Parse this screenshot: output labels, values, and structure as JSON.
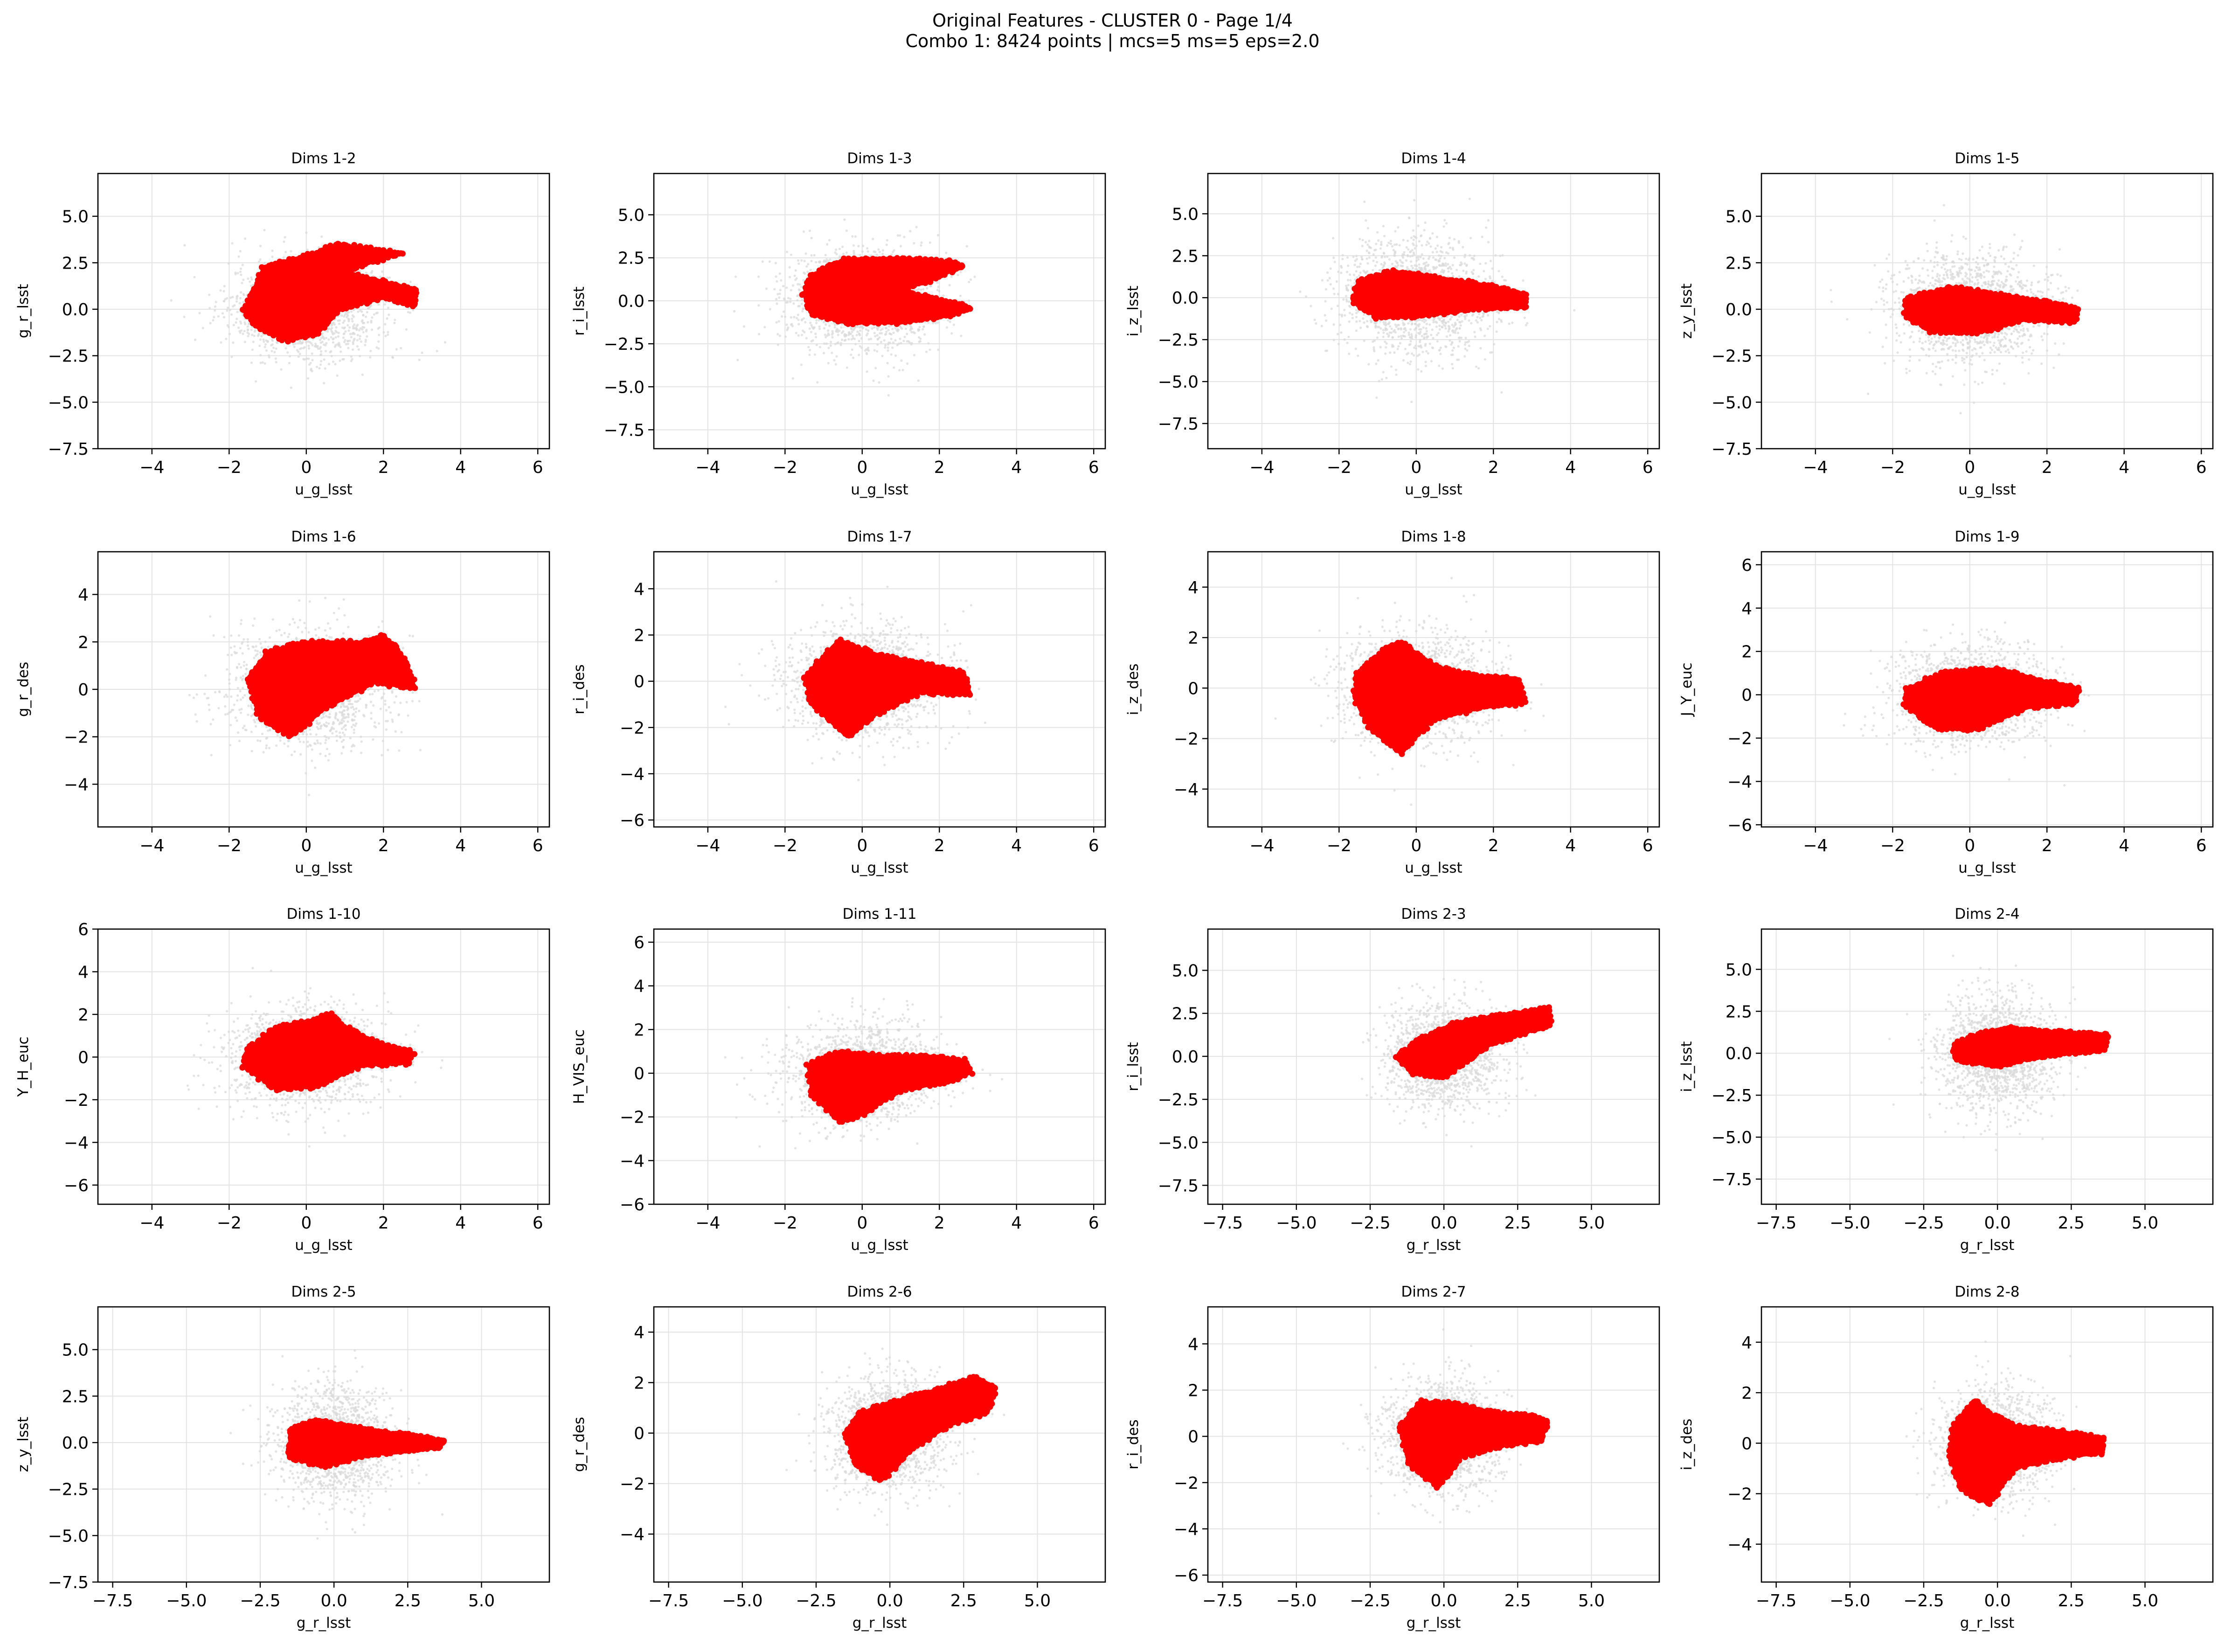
{
  "figure": {
    "title_line1": "Original Features - CLUSTER 0 - Page 1/4",
    "title_line2": "Combo 1: 8424 points | mcs=5 ms=5 eps=2.0",
    "point_colors": {
      "cluster": "#ff0000",
      "background": "#d9d9d9"
    }
  },
  "chart_data": [
    {
      "type": "scatter",
      "title": "Dims 1-2",
      "xlabel": "u_g_lsst",
      "ylabel": "g_r_lsst",
      "xlim": [
        -5.4,
        6.3
      ],
      "ylim": [
        -7.5,
        7.3
      ],
      "xticks": [
        -4,
        -2,
        0,
        2,
        4,
        6
      ],
      "yticks": [
        -7.5,
        -5.0,
        -2.5,
        0.0,
        2.5,
        5.0
      ],
      "background": {
        "center": [
          0.0,
          0.0
        ],
        "spread": [
          1.0,
          1.3
        ]
      },
      "cluster_outline": [
        [
          -1.6,
          0.0
        ],
        [
          -1.1,
          2.3
        ],
        [
          0.2,
          3.0
        ],
        [
          0.8,
          3.5
        ],
        [
          1.6,
          3.3
        ],
        [
          2.5,
          3.0
        ],
        [
          1.8,
          2.6
        ],
        [
          1.0,
          2.0
        ],
        [
          2.2,
          1.4
        ],
        [
          2.8,
          1.0
        ],
        [
          2.8,
          0.2
        ],
        [
          2.0,
          0.6
        ],
        [
          0.9,
          0.0
        ],
        [
          0.3,
          -1.3
        ],
        [
          -0.5,
          -1.7
        ],
        [
          -1.3,
          -0.9
        ]
      ]
    },
    {
      "type": "scatter",
      "title": "Dims 1-3",
      "xlabel": "u_g_lsst",
      "ylabel": "r_i_lsst",
      "xlim": [
        -5.4,
        6.3
      ],
      "ylim": [
        -8.6,
        7.4
      ],
      "xticks": [
        -4,
        -2,
        0,
        2,
        4,
        6
      ],
      "yticks": [
        -7.5,
        -5.0,
        -2.5,
        0.0,
        2.5,
        5.0
      ],
      "background": {
        "center": [
          0.0,
          0.0
        ],
        "spread": [
          1.0,
          1.5
        ]
      },
      "cluster_outline": [
        [
          -1.3,
          1.5
        ],
        [
          -0.5,
          2.4
        ],
        [
          1.0,
          2.5
        ],
        [
          2.2,
          2.3
        ],
        [
          2.6,
          2.0
        ],
        [
          1.8,
          1.2
        ],
        [
          1.0,
          0.6
        ],
        [
          2.2,
          0.0
        ],
        [
          2.8,
          -0.4
        ],
        [
          2.2,
          -0.9
        ],
        [
          1.0,
          -1.3
        ],
        [
          -0.4,
          -1.3
        ],
        [
          -1.3,
          -0.8
        ],
        [
          -1.5,
          0.3
        ]
      ]
    },
    {
      "type": "scatter",
      "title": "Dims 1-4",
      "xlabel": "u_g_lsst",
      "ylabel": "i_z_lsst",
      "xlim": [
        -5.4,
        6.3
      ],
      "ylim": [
        -9.0,
        7.4
      ],
      "xticks": [
        -4,
        -2,
        0,
        2,
        4,
        6
      ],
      "yticks": [
        -7.5,
        -5.0,
        -2.5,
        0.0,
        2.5,
        5.0
      ],
      "background": {
        "center": [
          0.0,
          0.0
        ],
        "spread": [
          1.0,
          1.8
        ]
      },
      "cluster_outline": [
        [
          -1.5,
          1.0
        ],
        [
          -0.6,
          1.6
        ],
        [
          0.6,
          1.2
        ],
        [
          2.0,
          0.7
        ],
        [
          2.8,
          0.2
        ],
        [
          2.8,
          -0.6
        ],
        [
          1.5,
          -0.7
        ],
        [
          0.2,
          -1.1
        ],
        [
          -1.0,
          -1.2
        ],
        [
          -1.6,
          -0.3
        ]
      ]
    },
    {
      "type": "scatter",
      "title": "Dims 1-5",
      "xlabel": "u_g_lsst",
      "ylabel": "z_y_lsst",
      "xlim": [
        -5.4,
        6.3
      ],
      "ylim": [
        -7.5,
        7.3
      ],
      "xticks": [
        -4,
        -2,
        0,
        2,
        4,
        6
      ],
      "yticks": [
        -7.5,
        -5.0,
        -2.5,
        0.0,
        2.5,
        5.0
      ],
      "background": {
        "center": [
          0.0,
          0.0
        ],
        "spread": [
          1.0,
          1.5
        ]
      },
      "cluster_outline": [
        [
          -1.6,
          0.6
        ],
        [
          -0.5,
          1.2
        ],
        [
          0.8,
          0.8
        ],
        [
          2.0,
          0.4
        ],
        [
          2.8,
          0.0
        ],
        [
          2.7,
          -0.7
        ],
        [
          1.4,
          -0.6
        ],
        [
          0.2,
          -1.3
        ],
        [
          -1.0,
          -1.2
        ],
        [
          -1.7,
          -0.3
        ]
      ]
    },
    {
      "type": "scatter",
      "title": "Dims 1-6",
      "xlabel": "u_g_lsst",
      "ylabel": "g_r_des",
      "xlim": [
        -5.4,
        6.3
      ],
      "ylim": [
        -5.8,
        5.8
      ],
      "xticks": [
        -4,
        -2,
        0,
        2,
        4,
        6
      ],
      "yticks": [
        -4,
        -2,
        0,
        2,
        4
      ],
      "background": {
        "center": [
          0.0,
          0.0
        ],
        "spread": [
          1.0,
          1.2
        ]
      },
      "cluster_outline": [
        [
          -1.5,
          0.4
        ],
        [
          -1.0,
          1.6
        ],
        [
          0.0,
          2.0
        ],
        [
          1.5,
          2.0
        ],
        [
          2.0,
          2.3
        ],
        [
          2.6,
          1.2
        ],
        [
          2.8,
          0.0
        ],
        [
          1.8,
          0.3
        ],
        [
          0.5,
          -0.8
        ],
        [
          -0.4,
          -2.0
        ],
        [
          -1.2,
          -1.2
        ]
      ]
    },
    {
      "type": "scatter",
      "title": "Dims 1-7",
      "xlabel": "u_g_lsst",
      "ylabel": "r_i_des",
      "xlim": [
        -5.4,
        6.3
      ],
      "ylim": [
        -6.3,
        5.6
      ],
      "xticks": [
        -4,
        -2,
        0,
        2,
        4,
        6
      ],
      "yticks": [
        -6,
        -4,
        -2,
        0,
        2,
        4
      ],
      "background": {
        "center": [
          0.0,
          0.0
        ],
        "spread": [
          1.0,
          1.2
        ]
      },
      "cluster_outline": [
        [
          -1.5,
          0.2
        ],
        [
          -0.6,
          1.8
        ],
        [
          0.3,
          1.2
        ],
        [
          1.5,
          0.8
        ],
        [
          2.6,
          0.4
        ],
        [
          2.8,
          -0.6
        ],
        [
          1.5,
          -0.5
        ],
        [
          0.3,
          -1.5
        ],
        [
          -0.4,
          -2.4
        ],
        [
          -1.3,
          -1.0
        ]
      ]
    },
    {
      "type": "scatter",
      "title": "Dims 1-8",
      "xlabel": "u_g_lsst",
      "ylabel": "i_z_des",
      "xlim": [
        -5.4,
        6.3
      ],
      "ylim": [
        -5.5,
        5.4
      ],
      "xticks": [
        -4,
        -2,
        0,
        2,
        4,
        6
      ],
      "yticks": [
        -4,
        -2,
        0,
        2,
        4
      ],
      "background": {
        "center": [
          0.0,
          0.0
        ],
        "spread": [
          1.0,
          1.1
        ]
      },
      "cluster_outline": [
        [
          -1.5,
          0.6
        ],
        [
          -0.8,
          1.6
        ],
        [
          -0.4,
          1.8
        ],
        [
          0.6,
          0.8
        ],
        [
          1.6,
          0.5
        ],
        [
          2.6,
          0.4
        ],
        [
          2.8,
          -0.6
        ],
        [
          1.6,
          -0.8
        ],
        [
          0.4,
          -1.3
        ],
        [
          -0.4,
          -2.6
        ],
        [
          -1.2,
          -1.6
        ],
        [
          -1.6,
          -0.4
        ]
      ]
    },
    {
      "type": "scatter",
      "title": "Dims 1-9",
      "xlabel": "u_g_lsst",
      "ylabel": "J_Y_euc",
      "xlim": [
        -5.4,
        6.3
      ],
      "ylim": [
        -6.1,
        6.6
      ],
      "xticks": [
        -4,
        -2,
        0,
        2,
        4,
        6
      ],
      "yticks": [
        -6,
        -4,
        -2,
        0,
        2,
        4,
        6
      ],
      "background": {
        "center": [
          0.0,
          0.0
        ],
        "spread": [
          1.0,
          1.2
        ]
      },
      "cluster_outline": [
        [
          -1.6,
          0.3
        ],
        [
          -0.6,
          1.1
        ],
        [
          0.8,
          1.2
        ],
        [
          2.0,
          0.6
        ],
        [
          2.8,
          0.3
        ],
        [
          2.7,
          -0.4
        ],
        [
          1.5,
          -0.6
        ],
        [
          0.2,
          -1.6
        ],
        [
          -0.8,
          -1.6
        ],
        [
          -1.7,
          -0.5
        ]
      ]
    },
    {
      "type": "scatter",
      "title": "Dims 1-10",
      "xlabel": "u_g_lsst",
      "ylabel": "Y_H_euc",
      "xlim": [
        -5.4,
        6.3
      ],
      "ylim": [
        -6.9,
        6.0
      ],
      "xticks": [
        -4,
        -2,
        0,
        2,
        4,
        6
      ],
      "yticks": [
        -6,
        -4,
        -2,
        0,
        2,
        4,
        6
      ],
      "background": {
        "center": [
          0.0,
          0.0
        ],
        "spread": [
          1.0,
          1.2
        ]
      },
      "cluster_outline": [
        [
          -1.5,
          0.4
        ],
        [
          -0.8,
          1.4
        ],
        [
          0.3,
          1.8
        ],
        [
          0.6,
          2.0
        ],
        [
          1.2,
          1.2
        ],
        [
          2.0,
          0.6
        ],
        [
          2.8,
          0.2
        ],
        [
          2.6,
          -0.3
        ],
        [
          1.4,
          -0.4
        ],
        [
          0.3,
          -1.4
        ],
        [
          -0.8,
          -1.5
        ],
        [
          -1.6,
          -0.5
        ]
      ]
    },
    {
      "type": "scatter",
      "title": "Dims 1-11",
      "xlabel": "u_g_lsst",
      "ylabel": "H_VIS_euc",
      "xlim": [
        -5.4,
        6.3
      ],
      "ylim": [
        -6.0,
        6.6
      ],
      "xticks": [
        -4,
        -2,
        0,
        2,
        4,
        6
      ],
      "yticks": [
        -6,
        -4,
        -2,
        0,
        2,
        4,
        6
      ],
      "background": {
        "center": [
          0.0,
          0.0
        ],
        "spread": [
          1.0,
          1.1
        ]
      },
      "cluster_outline": [
        [
          -1.4,
          0.4
        ],
        [
          -0.6,
          1.0
        ],
        [
          0.6,
          0.8
        ],
        [
          1.6,
          0.8
        ],
        [
          2.6,
          0.6
        ],
        [
          2.8,
          0.0
        ],
        [
          2.2,
          -0.4
        ],
        [
          1.0,
          -0.8
        ],
        [
          0.0,
          -1.9
        ],
        [
          -0.6,
          -2.2
        ],
        [
          -1.3,
          -1.0
        ]
      ]
    },
    {
      "type": "scatter",
      "title": "Dims 2-3",
      "xlabel": "g_r_lsst",
      "ylabel": "r_i_lsst",
      "xlim": [
        -8.0,
        7.3
      ],
      "ylim": [
        -8.6,
        7.4
      ],
      "xticks": [
        -7.5,
        -5.0,
        -2.5,
        0.0,
        2.5,
        5.0
      ],
      "yticks": [
        -7.5,
        -5.0,
        -2.5,
        0.0,
        2.5,
        5.0
      ],
      "background": {
        "center": [
          0.0,
          0.0
        ],
        "spread": [
          1.0,
          1.5
        ]
      },
      "cluster_outline": [
        [
          -1.6,
          0.0
        ],
        [
          -0.8,
          1.0
        ],
        [
          0.3,
          1.9
        ],
        [
          1.5,
          2.3
        ],
        [
          2.8,
          2.6
        ],
        [
          3.5,
          2.8
        ],
        [
          3.6,
          1.8
        ],
        [
          3.0,
          1.5
        ],
        [
          1.5,
          0.6
        ],
        [
          0.6,
          -0.5
        ],
        [
          0.0,
          -1.2
        ],
        [
          -1.0,
          -1.0
        ]
      ]
    },
    {
      "type": "scatter",
      "title": "Dims 2-4",
      "xlabel": "g_r_lsst",
      "ylabel": "i_z_lsst",
      "xlim": [
        -8.0,
        7.3
      ],
      "ylim": [
        -9.0,
        7.4
      ],
      "xticks": [
        -7.5,
        -5.0,
        -2.5,
        0.0,
        2.5,
        5.0
      ],
      "yticks": [
        -7.5,
        -5.0,
        -2.5,
        0.0,
        2.5,
        5.0
      ],
      "background": {
        "center": [
          0.0,
          0.0
        ],
        "spread": [
          1.0,
          1.8
        ]
      },
      "cluster_outline": [
        [
          -1.5,
          0.5
        ],
        [
          -0.6,
          1.2
        ],
        [
          0.5,
          1.5
        ],
        [
          1.8,
          1.3
        ],
        [
          3.0,
          1.2
        ],
        [
          3.7,
          1.1
        ],
        [
          3.6,
          0.2
        ],
        [
          2.6,
          0.0
        ],
        [
          1.2,
          -0.3
        ],
        [
          0.0,
          -0.8
        ],
        [
          -1.4,
          -0.4
        ]
      ]
    },
    {
      "type": "scatter",
      "title": "Dims 2-5",
      "xlabel": "g_r_lsst",
      "ylabel": "z_y_lsst",
      "xlim": [
        -8.0,
        7.3
      ],
      "ylim": [
        -7.5,
        7.3
      ],
      "xticks": [
        -7.5,
        -5.0,
        -2.5,
        0.0,
        2.5,
        5.0
      ],
      "yticks": [
        -7.5,
        -5.0,
        -2.5,
        0.0,
        2.5,
        5.0
      ],
      "background": {
        "center": [
          0.0,
          0.0
        ],
        "spread": [
          1.0,
          1.5
        ]
      },
      "cluster_outline": [
        [
          -1.5,
          0.7
        ],
        [
          -0.6,
          1.2
        ],
        [
          0.5,
          0.9
        ],
        [
          1.6,
          0.6
        ],
        [
          2.6,
          0.4
        ],
        [
          3.7,
          0.1
        ],
        [
          3.5,
          -0.3
        ],
        [
          2.0,
          -0.5
        ],
        [
          0.8,
          -0.8
        ],
        [
          -0.3,
          -1.3
        ],
        [
          -1.5,
          -0.8
        ]
      ]
    },
    {
      "type": "scatter",
      "title": "Dims 2-6",
      "xlabel": "g_r_lsst",
      "ylabel": "g_r_des",
      "xlim": [
        -8.0,
        7.3
      ],
      "ylim": [
        -5.9,
        5.0
      ],
      "xticks": [
        -7.5,
        -5.0,
        -2.5,
        0.0,
        2.5,
        5.0
      ],
      "yticks": [
        -4,
        -2,
        0,
        2,
        4
      ],
      "background": {
        "center": [
          0.0,
          0.0
        ],
        "spread": [
          1.0,
          1.1
        ]
      },
      "cluster_outline": [
        [
          -1.5,
          0.0
        ],
        [
          -1.0,
          0.8
        ],
        [
          0.0,
          1.2
        ],
        [
          1.5,
          1.7
        ],
        [
          2.8,
          2.2
        ],
        [
          3.6,
          1.8
        ],
        [
          3.3,
          0.8
        ],
        [
          2.0,
          0.3
        ],
        [
          0.8,
          -0.6
        ],
        [
          -0.3,
          -1.9
        ],
        [
          -1.2,
          -1.2
        ]
      ]
    },
    {
      "type": "scatter",
      "title": "Dims 2-7",
      "xlabel": "g_r_lsst",
      "ylabel": "r_i_des",
      "xlim": [
        -8.0,
        7.3
      ],
      "ylim": [
        -6.3,
        5.6
      ],
      "xticks": [
        -7.5,
        -5.0,
        -2.5,
        0.0,
        2.5,
        5.0
      ],
      "yticks": [
        -6,
        -4,
        -2,
        0,
        2,
        4
      ],
      "background": {
        "center": [
          0.0,
          0.0
        ],
        "spread": [
          1.0,
          1.2
        ]
      },
      "cluster_outline": [
        [
          -1.5,
          0.4
        ],
        [
          -0.8,
          1.5
        ],
        [
          0.5,
          1.4
        ],
        [
          1.8,
          1.0
        ],
        [
          3.0,
          0.9
        ],
        [
          3.5,
          0.6
        ],
        [
          3.3,
          -0.2
        ],
        [
          2.0,
          -0.4
        ],
        [
          0.6,
          -0.9
        ],
        [
          -0.2,
          -2.2
        ],
        [
          -1.2,
          -1.2
        ]
      ]
    },
    {
      "type": "scatter",
      "title": "Dims 2-8",
      "xlabel": "g_r_lsst",
      "ylabel": "i_z_des",
      "xlim": [
        -8.0,
        7.3
      ],
      "ylim": [
        -5.5,
        5.4
      ],
      "xticks": [
        -7.5,
        -5.0,
        -2.5,
        0.0,
        2.5,
        5.0
      ],
      "yticks": [
        -4,
        -2,
        0,
        2,
        4
      ],
      "background": {
        "center": [
          0.0,
          0.0
        ],
        "spread": [
          1.0,
          1.1
        ]
      },
      "cluster_outline": [
        [
          -1.5,
          0.6
        ],
        [
          -0.8,
          1.7
        ],
        [
          -0.3,
          1.2
        ],
        [
          0.6,
          0.7
        ],
        [
          2.0,
          0.5
        ],
        [
          3.6,
          0.2
        ],
        [
          3.5,
          -0.4
        ],
        [
          2.0,
          -0.6
        ],
        [
          0.6,
          -1.0
        ],
        [
          -0.3,
          -2.4
        ],
        [
          -1.2,
          -1.8
        ],
        [
          -1.6,
          -0.6
        ]
      ]
    }
  ]
}
